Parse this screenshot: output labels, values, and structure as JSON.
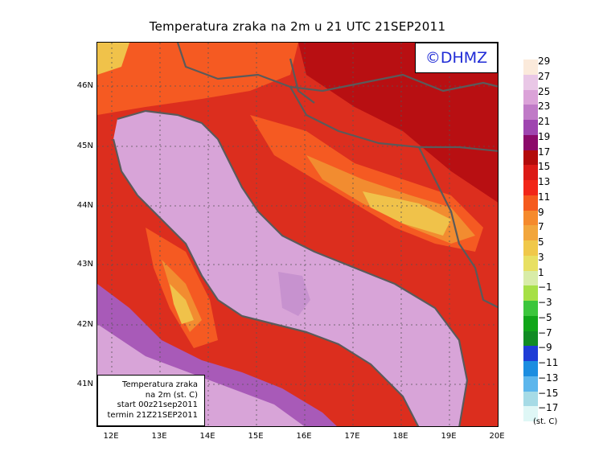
{
  "title": "Temperatura zraka na 2m u 21 UTC 21SEP2011",
  "logo": "©DHMZ",
  "info_box": {
    "line1": "Temperatura zraka",
    "line2": "na 2m (st. C)",
    "line3": "start 00z21sep2011",
    "line4": "termin 21Z21SEP2011"
  },
  "y_axis": [
    "46N",
    "45N",
    "44N",
    "43N",
    "42N",
    "41N"
  ],
  "x_axis": [
    "12E",
    "13E",
    "14E",
    "15E",
    "16E",
    "17E",
    "18E",
    "19E",
    "20E"
  ],
  "legend": {
    "labels": [
      "29",
      "27",
      "25",
      "23",
      "21",
      "19",
      "17",
      "15",
      "13",
      "11",
      "9",
      "7",
      "5",
      "3",
      "1",
      "−1",
      "−3",
      "−5",
      "−7",
      "−9",
      "−11",
      "−13",
      "−15",
      "−17"
    ],
    "colors": [
      "#fbeadb",
      "#e9c7e6",
      "#dba2d8",
      "#c07ac7",
      "#9f45b0",
      "#8c0a6a",
      "#b30b0b",
      "#dc1a16",
      "#f22618",
      "#f55a1d",
      "#f58a2c",
      "#f2a63c",
      "#f0c84a",
      "#e8e062",
      "#d8eca8",
      "#a6e046",
      "#3cc63c",
      "#11a619",
      "#118c24",
      "#1f3dd6",
      "#1b8de0",
      "#5cb6ec",
      "#a6dbe6",
      "#dff7f6"
    ],
    "units": "(st. C)"
  },
  "colors": {
    "sea": "#d8a4d8",
    "sea_warm": "#c792cf",
    "coast_band": "#a85ab8",
    "land_warm": "#dc2e1e",
    "land_hot": "#b80f12",
    "land_mild": "#f55a22",
    "land_cool": "#f28c30",
    "land_cold": "#f0c24a",
    "border_line": "#5a5a5a",
    "grid_line": "#555555",
    "logo_text": "#1f2bd6"
  }
}
